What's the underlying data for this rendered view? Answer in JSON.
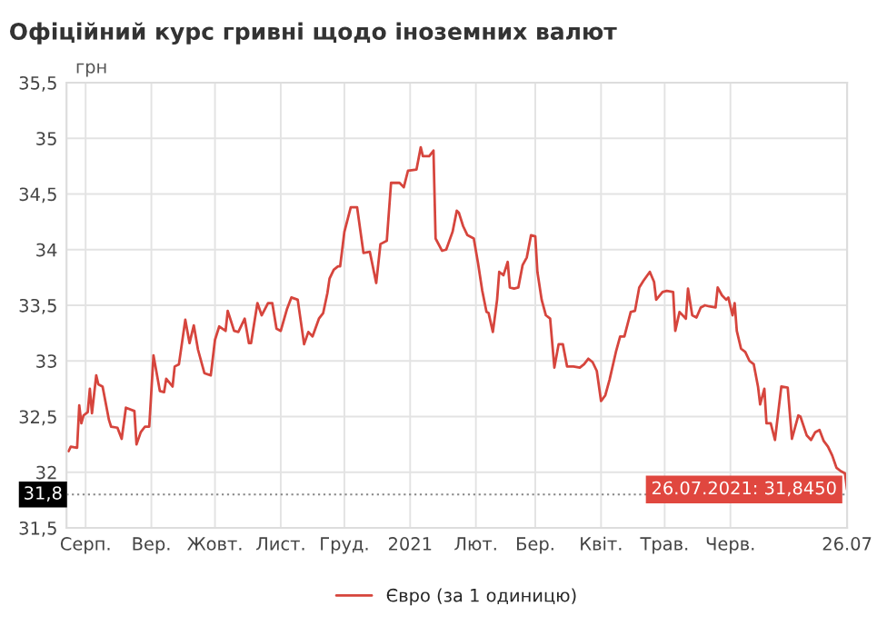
{
  "chart_data": {
    "type": "line",
    "title": "Офіційний курс гривні щодо іноземних валют",
    "ylabel": "грн",
    "x": [
      "2020-07-24",
      "2020-07-25",
      "2020-07-28",
      "2020-07-29",
      "2020-07-30",
      "2020-07-31",
      "2020-08-02",
      "2020-08-03",
      "2020-08-04",
      "2020-08-06",
      "2020-08-07",
      "2020-08-09",
      "2020-08-12",
      "2020-08-13",
      "2020-08-16",
      "2020-08-18",
      "2020-08-20",
      "2020-08-24",
      "2020-08-25",
      "2020-08-27",
      "2020-08-29",
      "2020-08-31",
      "2020-09-02",
      "2020-09-05",
      "2020-09-07",
      "2020-09-08",
      "2020-09-11",
      "2020-09-12",
      "2020-09-14",
      "2020-09-17",
      "2020-09-19",
      "2020-09-21",
      "2020-09-23",
      "2020-09-26",
      "2020-09-29",
      "2020-10-01",
      "2020-10-03",
      "2020-10-06",
      "2020-10-07",
      "2020-10-10",
      "2020-10-12",
      "2020-10-15",
      "2020-10-17",
      "2020-10-18",
      "2020-10-21",
      "2020-10-23",
      "2020-10-26",
      "2020-10-28",
      "2020-10-30",
      "2020-11-01",
      "2020-11-04",
      "2020-11-06",
      "2020-11-09",
      "2020-11-12",
      "2020-11-14",
      "2020-11-16",
      "2020-11-19",
      "2020-11-21",
      "2020-11-23",
      "2020-11-24",
      "2020-11-26",
      "2020-11-28",
      "2020-11-29",
      "2020-12-01",
      "2020-12-04",
      "2020-12-07",
      "2020-12-10",
      "2020-12-13",
      "2020-12-16",
      "2020-12-18",
      "2020-12-21",
      "2020-12-23",
      "2020-12-27",
      "2020-12-29",
      "2020-12-31",
      "2021-01-04",
      "2021-01-06",
      "2021-01-07",
      "2021-01-10",
      "2021-01-12",
      "2021-01-13",
      "2021-01-16",
      "2021-01-18",
      "2021-01-21",
      "2021-01-23",
      "2021-01-24",
      "2021-01-26",
      "2021-01-28",
      "2021-01-31",
      "2021-02-02",
      "2021-02-04",
      "2021-02-06",
      "2021-02-07",
      "2021-02-09",
      "2021-02-11",
      "2021-02-12",
      "2021-02-14",
      "2021-02-16",
      "2021-02-17",
      "2021-02-19",
      "2021-02-21",
      "2021-02-23",
      "2021-02-25",
      "2021-02-27",
      "2021-03-01",
      "2021-03-02",
      "2021-03-04",
      "2021-03-06",
      "2021-03-08",
      "2021-03-10",
      "2021-03-12",
      "2021-03-14",
      "2021-03-16",
      "2021-03-19",
      "2021-03-22",
      "2021-03-24",
      "2021-03-26",
      "2021-03-28",
      "2021-03-30",
      "2021-04-01",
      "2021-04-03",
      "2021-04-05",
      "2021-04-08",
      "2021-04-10",
      "2021-04-12",
      "2021-04-15",
      "2021-04-17",
      "2021-04-19",
      "2021-04-21",
      "2021-04-24",
      "2021-04-26",
      "2021-04-27",
      "2021-04-30",
      "2021-05-02",
      "2021-05-05",
      "2021-05-06",
      "2021-05-08",
      "2021-05-11",
      "2021-05-12",
      "2021-05-14",
      "2021-05-16",
      "2021-05-18",
      "2021-05-20",
      "2021-05-22",
      "2021-05-25",
      "2021-05-26",
      "2021-05-28",
      "2021-05-30",
      "2021-05-31",
      "2021-06-02",
      "2021-06-03",
      "2021-06-04",
      "2021-06-06",
      "2021-06-08",
      "2021-06-10",
      "2021-06-12",
      "2021-06-14",
      "2021-06-15",
      "2021-06-17",
      "2021-06-18",
      "2021-06-20",
      "2021-06-22",
      "2021-06-24",
      "2021-06-25",
      "2021-06-28",
      "2021-06-30",
      "2021-07-03",
      "2021-07-04",
      "2021-07-07",
      "2021-07-09",
      "2021-07-11",
      "2021-07-13",
      "2021-07-15",
      "2021-07-17",
      "2021-07-19",
      "2021-07-21",
      "2021-07-23",
      "2021-07-25",
      "2021-07-26"
    ],
    "series": [
      {
        "name": "Євро (за 1 одиницю)",
        "color": "#d6453d",
        "values": [
          32.19,
          32.23,
          32.22,
          32.6,
          32.44,
          32.51,
          32.54,
          32.75,
          32.53,
          32.87,
          32.79,
          32.77,
          32.47,
          32.41,
          32.4,
          32.3,
          32.58,
          32.55,
          32.25,
          32.36,
          32.41,
          32.41,
          33.05,
          32.73,
          32.72,
          32.84,
          32.77,
          32.95,
          32.97,
          33.37,
          33.16,
          33.32,
          33.1,
          32.89,
          32.87,
          33.19,
          33.31,
          33.27,
          33.45,
          33.27,
          33.26,
          33.38,
          33.16,
          33.16,
          33.52,
          33.41,
          33.52,
          33.52,
          33.29,
          33.27,
          33.47,
          33.57,
          33.55,
          33.15,
          33.26,
          33.22,
          33.38,
          33.43,
          33.61,
          33.74,
          33.82,
          33.85,
          33.85,
          34.16,
          34.38,
          34.38,
          33.97,
          33.98,
          33.7,
          34.05,
          34.08,
          34.6,
          34.6,
          34.56,
          34.71,
          34.72,
          34.92,
          34.84,
          34.84,
          34.89,
          34.1,
          33.99,
          34.0,
          34.16,
          34.35,
          34.33,
          34.21,
          34.13,
          34.1,
          33.88,
          33.63,
          33.44,
          33.43,
          33.26,
          33.55,
          33.8,
          33.77,
          33.89,
          33.66,
          33.65,
          33.66,
          33.86,
          33.93,
          34.13,
          34.12,
          33.8,
          33.55,
          33.41,
          33.38,
          32.94,
          33.15,
          33.15,
          32.95,
          32.95,
          32.94,
          32.97,
          33.02,
          32.99,
          32.91,
          32.64,
          32.69,
          32.83,
          33.08,
          33.22,
          33.22,
          33.44,
          33.45,
          33.66,
          33.72,
          33.8,
          33.71,
          33.55,
          33.62,
          33.63,
          33.62,
          33.27,
          33.44,
          33.38,
          33.65,
          33.41,
          33.39,
          33.48,
          33.5,
          33.49,
          33.48,
          33.66,
          33.59,
          33.55,
          33.57,
          33.41,
          33.52,
          33.27,
          33.11,
          33.08,
          33.0,
          32.97,
          32.77,
          32.61,
          32.75,
          32.44,
          32.44,
          32.29,
          32.61,
          32.77,
          32.76,
          32.3,
          32.51,
          32.5,
          32.33,
          32.29,
          32.36,
          32.38,
          32.28,
          32.23,
          32.15,
          32.04,
          32.01,
          31.99,
          31.845
        ]
      }
    ],
    "xlim": [
      "2020-07-23",
      "2021-07-26"
    ],
    "xticks": [
      {
        "value": "2020-08-01",
        "label": "Серп."
      },
      {
        "value": "2020-09-01",
        "label": "Вер."
      },
      {
        "value": "2020-10-01",
        "label": "Жовт."
      },
      {
        "value": "2020-11-01",
        "label": "Лист."
      },
      {
        "value": "2020-12-01",
        "label": "Груд."
      },
      {
        "value": "2021-01-01",
        "label": "2021"
      },
      {
        "value": "2021-02-01",
        "label": "Лют."
      },
      {
        "value": "2021-03-01",
        "label": "Бер."
      },
      {
        "value": "2021-04-01",
        "label": "Квіт."
      },
      {
        "value": "2021-05-01",
        "label": "Трав."
      },
      {
        "value": "2021-06-01",
        "label": "Черв."
      },
      {
        "value": "2021-07-26",
        "label": "26.07"
      }
    ],
    "ylim": [
      31.5,
      35.5
    ],
    "yticks": [
      {
        "value": 31.5,
        "label": "31,5"
      },
      32,
      {
        "value": 32.5,
        "label": "32,5"
      },
      33,
      {
        "value": 33.5,
        "label": "33,5"
      },
      34,
      {
        "value": 34.5,
        "label": "34,5"
      },
      35,
      {
        "value": 35.5,
        "label": "35,5"
      }
    ],
    "ref_lines": [
      {
        "axis": "y",
        "value": 31.8,
        "label": "31,8",
        "color": "#888888",
        "line_style": "dotted"
      }
    ],
    "annotations": [
      {
        "text": "26.07.2021: 31,8450",
        "x": "2021-07-26",
        "y": 31.845
      }
    ],
    "grid": true,
    "legend": "bottom",
    "marker": "none",
    "line_style": "solid"
  }
}
